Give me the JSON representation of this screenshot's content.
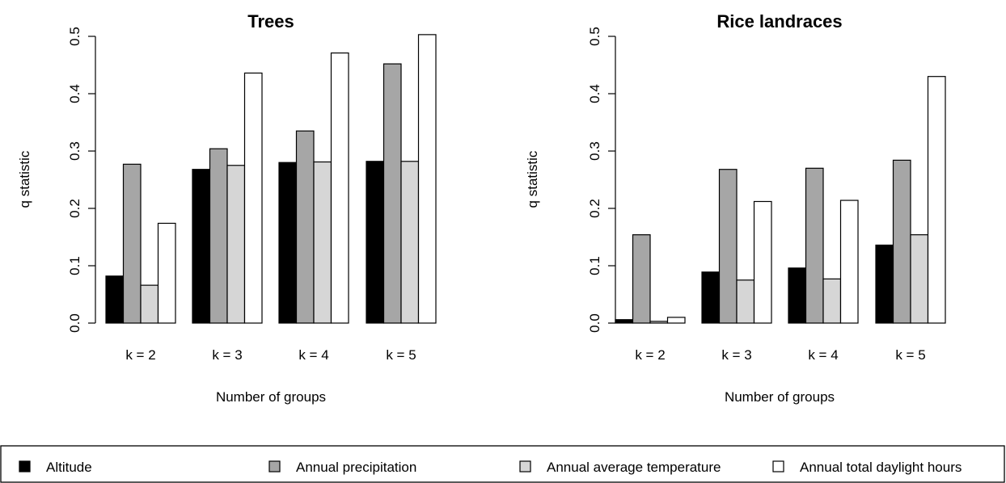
{
  "colors": {
    "Altitude": "#000000",
    "Annual precipitation": "#a6a6a6",
    "Annual average temperature": "#d6d6d6",
    "Annual total daylight hours": "#ffffff"
  },
  "legend": {
    "items": [
      "Altitude",
      "Annual precipitation",
      "Annual average temperature",
      "Annual total daylight hours"
    ],
    "placement": "bottom"
  },
  "chart_data": [
    {
      "type": "bar",
      "title": "Trees",
      "xlabel": "Number of groups",
      "ylabel": "q statistic",
      "ylim": [
        0,
        0.5
      ],
      "yticks": [
        "0.0",
        "0.1",
        "0.2",
        "0.3",
        "0.4",
        "0.5"
      ],
      "categories": [
        "k = 2",
        "k = 3",
        "k = 4",
        "k = 5"
      ],
      "grid": false,
      "series": [
        {
          "name": "Altitude",
          "values": [
            0.082,
            0.268,
            0.28,
            0.282
          ]
        },
        {
          "name": "Annual precipitation",
          "values": [
            0.277,
            0.304,
            0.335,
            0.452
          ]
        },
        {
          "name": "Annual average temperature",
          "values": [
            0.066,
            0.275,
            0.281,
            0.282
          ]
        },
        {
          "name": "Annual total daylight hours",
          "values": [
            0.174,
            0.436,
            0.471,
            0.503
          ]
        }
      ]
    },
    {
      "type": "bar",
      "title": "Rice landraces",
      "xlabel": "Number of groups",
      "ylabel": "q statistic",
      "ylim": [
        0,
        0.5
      ],
      "yticks": [
        "0.0",
        "0.1",
        "0.2",
        "0.3",
        "0.4",
        "0.5"
      ],
      "categories": [
        "k = 2",
        "k = 3",
        "k = 4",
        "k = 5"
      ],
      "grid": false,
      "series": [
        {
          "name": "Altitude",
          "values": [
            0.006,
            0.089,
            0.096,
            0.136
          ]
        },
        {
          "name": "Annual precipitation",
          "values": [
            0.154,
            0.268,
            0.27,
            0.284
          ]
        },
        {
          "name": "Annual average temperature",
          "values": [
            0.003,
            0.075,
            0.077,
            0.154
          ]
        },
        {
          "name": "Annual total daylight hours",
          "values": [
            0.01,
            0.212,
            0.214,
            0.43
          ]
        }
      ]
    }
  ]
}
